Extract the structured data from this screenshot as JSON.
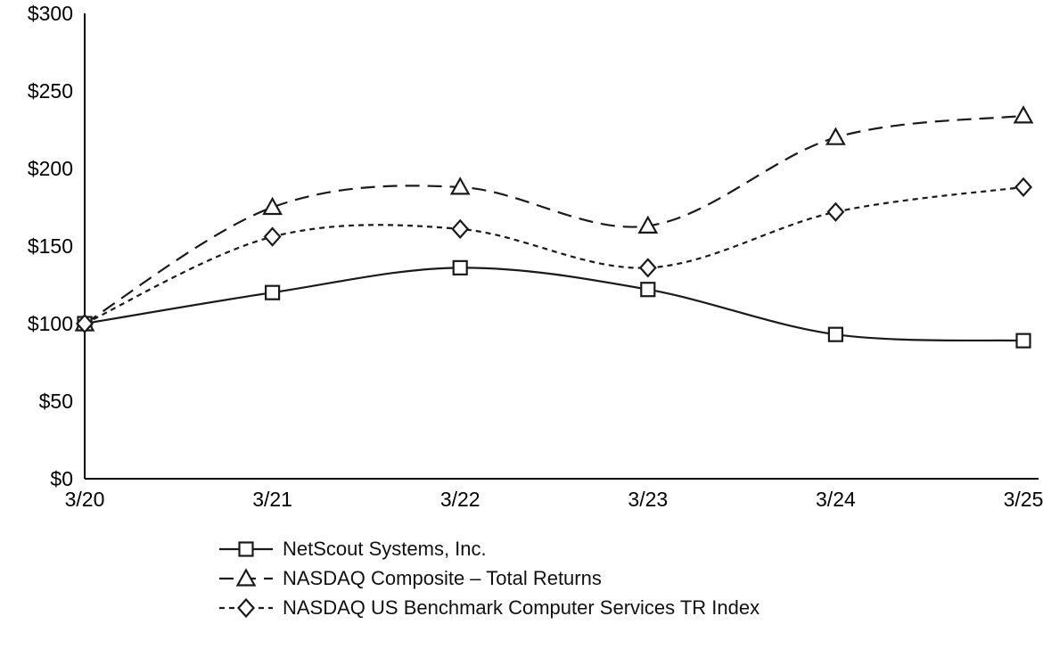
{
  "chart_data": {
    "type": "line",
    "title": "",
    "xlabel": "",
    "ylabel": "",
    "x": [
      "3/20",
      "3/21",
      "3/22",
      "3/23",
      "3/24",
      "3/25"
    ],
    "ylim": [
      0,
      300
    ],
    "yticks": [
      0,
      50,
      100,
      150,
      200,
      250,
      300
    ],
    "ytick_labels": [
      "$0",
      "$50",
      "$100",
      "$150",
      "$200",
      "$250",
      "$300"
    ],
    "grid": false,
    "legend_position": "bottom-left",
    "axis_color": "#000000",
    "series": [
      {
        "name": "NetScout Systems, Inc.",
        "values": [
          100,
          120,
          136,
          122,
          93,
          89
        ],
        "marker": "square",
        "line_style": "solid",
        "color": "#1a1a1a"
      },
      {
        "name": "NASDAQ Composite – Total Returns",
        "values": [
          100,
          175,
          188,
          163,
          220,
          234
        ],
        "marker": "triangle",
        "line_style": "long-dash",
        "color": "#1a1a1a"
      },
      {
        "name": "NASDAQ US Benchmark Computer Services TR Index",
        "values": [
          100,
          156,
          161,
          136,
          172,
          188
        ],
        "marker": "diamond",
        "line_style": "short-dash",
        "color": "#1a1a1a"
      }
    ]
  }
}
